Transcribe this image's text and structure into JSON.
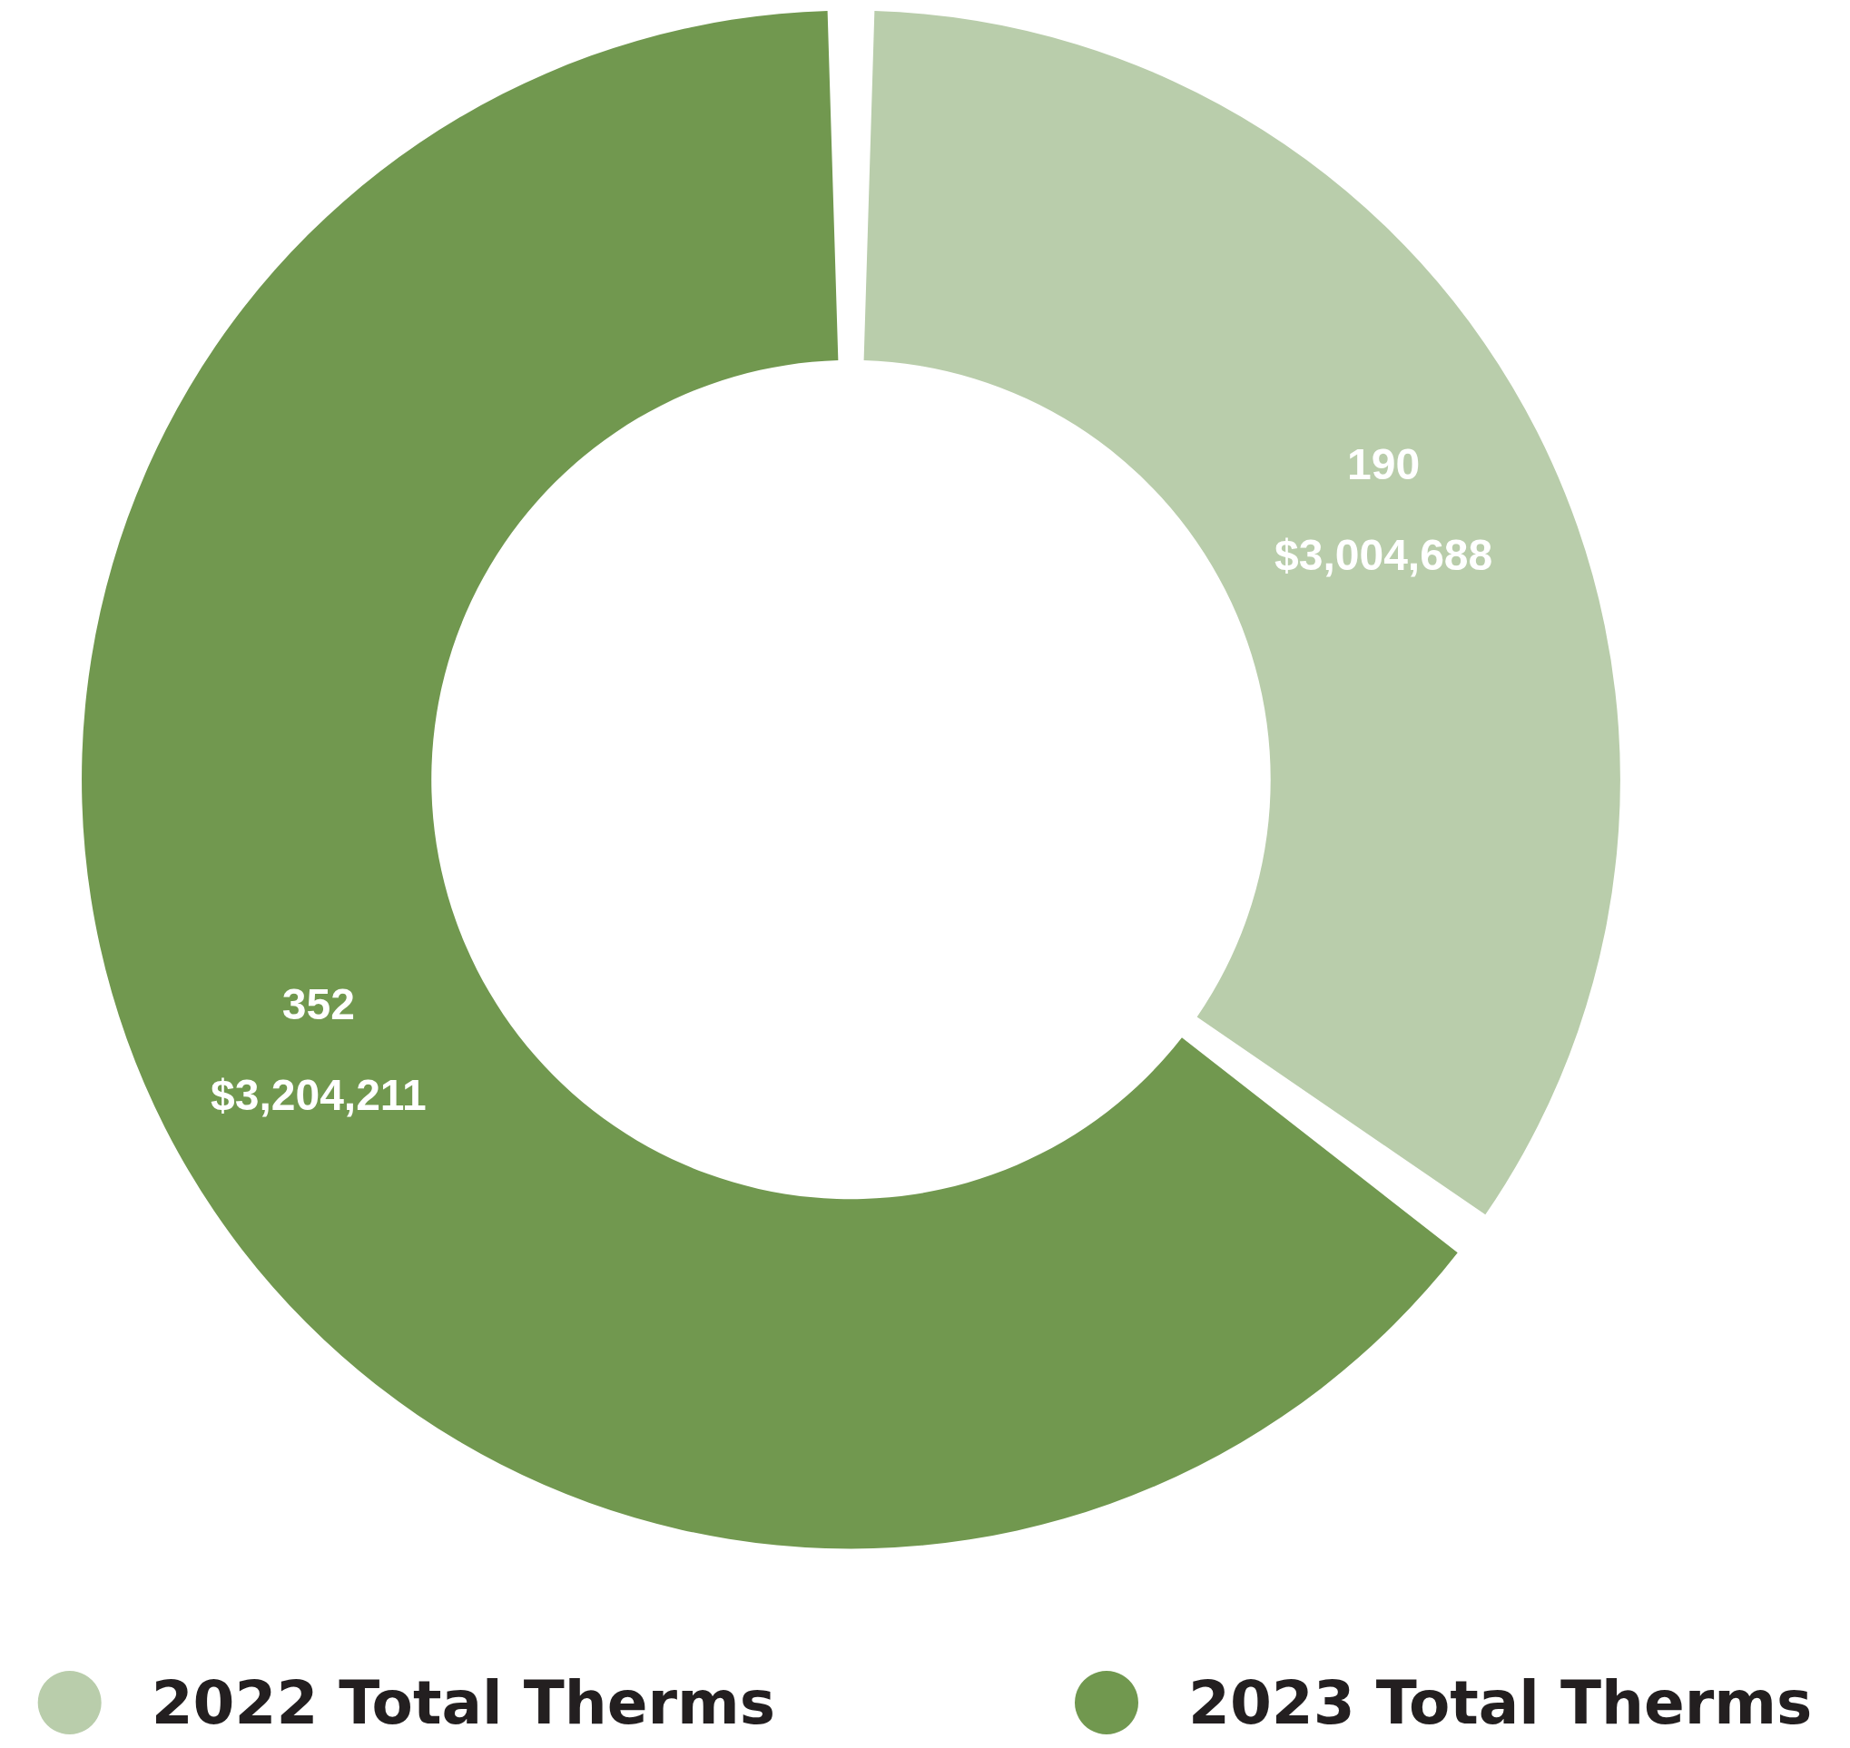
{
  "chart_data": {
    "type": "donut",
    "categories": [
      "2022 Total Therms",
      "2023 Total Therms"
    ],
    "values": [
      190,
      352
    ],
    "colors": [
      "#b9cdab",
      "#71984f"
    ],
    "value_labels": [
      "190\n$3,004,688",
      "352\n$3,204,211"
    ],
    "legend": "bottom"
  }
}
